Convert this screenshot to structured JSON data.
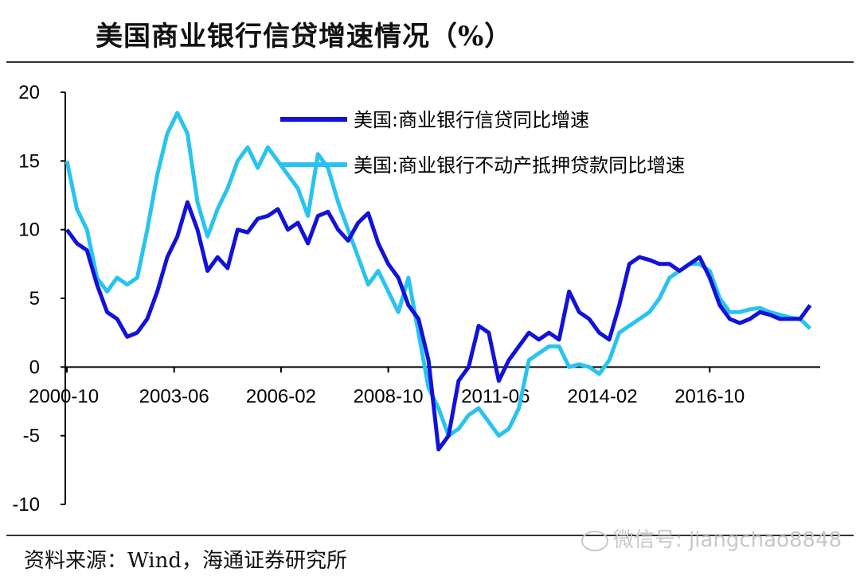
{
  "header": {
    "title": "美国商业银行信贷增速情况（%）"
  },
  "footer": {
    "source": "资料来源：Wind，海通证券研究所"
  },
  "watermark": {
    "text": "微信号: jiangchao8848"
  },
  "chart_data": {
    "type": "line",
    "title": "美国商业银行信贷增速情况（%）",
    "xlabel": "",
    "ylabel": "",
    "ylim": [
      -10,
      20
    ],
    "yticks": [
      -10,
      -5,
      0,
      5,
      10,
      15,
      20
    ],
    "xlim": [
      2000.75,
      2019.5
    ],
    "xtick_labels": [
      "2000-10",
      "2003-06",
      "2006-02",
      "2008-10",
      "2011-06",
      "2014-02",
      "2016-10"
    ],
    "xtick_values": [
      2000.75,
      2003.42,
      2006.08,
      2008.75,
      2011.42,
      2014.08,
      2016.75
    ],
    "grid": false,
    "legend": "top-right",
    "series": [
      {
        "name": "美国:商业银行信贷同比增速",
        "color": "#1212d9",
        "x": [
          2000.75,
          2001.0,
          2001.25,
          2001.5,
          2001.75,
          2002.0,
          2002.25,
          2002.5,
          2002.75,
          2003.0,
          2003.25,
          2003.5,
          2003.75,
          2004.0,
          2004.25,
          2004.5,
          2004.75,
          2005.0,
          2005.25,
          2005.5,
          2005.75,
          2006.0,
          2006.25,
          2006.5,
          2006.75,
          2007.0,
          2007.25,
          2007.5,
          2007.75,
          2008.0,
          2008.25,
          2008.5,
          2008.75,
          2009.0,
          2009.25,
          2009.5,
          2009.75,
          2010.0,
          2010.25,
          2010.5,
          2010.75,
          2011.0,
          2011.25,
          2011.5,
          2011.75,
          2012.0,
          2012.25,
          2012.5,
          2012.75,
          2013.0,
          2013.25,
          2013.5,
          2013.75,
          2014.0,
          2014.25,
          2014.5,
          2014.75,
          2015.0,
          2015.25,
          2015.5,
          2015.75,
          2016.0,
          2016.25,
          2016.5,
          2016.75,
          2017.0,
          2017.25,
          2017.5,
          2017.75,
          2018.0,
          2018.25,
          2018.5,
          2018.75,
          2019.0,
          2019.25
        ],
        "values": [
          10.0,
          9.0,
          8.5,
          6.0,
          4.0,
          3.5,
          2.2,
          2.5,
          3.5,
          5.5,
          8.0,
          9.5,
          12.0,
          10.0,
          7.0,
          8.0,
          7.2,
          10.0,
          9.8,
          10.8,
          11.0,
          11.5,
          10.0,
          10.5,
          9.0,
          11.0,
          11.3,
          10.0,
          9.2,
          10.5,
          11.2,
          9.0,
          7.5,
          6.5,
          4.5,
          3.5,
          0.5,
          -6.0,
          -5.0,
          -1.0,
          0.0,
          3.0,
          2.5,
          -1.0,
          0.5,
          1.5,
          2.5,
          2.0,
          2.5,
          2.0,
          5.5,
          4.0,
          3.5,
          2.5,
          2.0,
          4.5,
          7.5,
          8.0,
          7.8,
          7.5,
          7.5,
          7.0,
          7.5,
          8.0,
          6.5,
          4.5,
          3.5,
          3.2,
          3.5,
          4.0,
          3.8,
          3.5,
          3.5,
          3.5,
          4.5
        ]
      },
      {
        "name": "美国:商业银行不动产抵押贷款同比增速",
        "color": "#29c3ef",
        "x": [
          2000.75,
          2001.0,
          2001.25,
          2001.5,
          2001.75,
          2002.0,
          2002.25,
          2002.5,
          2002.75,
          2003.0,
          2003.25,
          2003.5,
          2003.75,
          2004.0,
          2004.25,
          2004.5,
          2004.75,
          2005.0,
          2005.25,
          2005.5,
          2005.75,
          2006.0,
          2006.25,
          2006.5,
          2006.75,
          2007.0,
          2007.25,
          2007.5,
          2007.75,
          2008.0,
          2008.25,
          2008.5,
          2008.75,
          2009.0,
          2009.25,
          2009.5,
          2009.75,
          2010.0,
          2010.25,
          2010.5,
          2010.75,
          2011.0,
          2011.25,
          2011.5,
          2011.75,
          2012.0,
          2012.25,
          2012.5,
          2012.75,
          2013.0,
          2013.25,
          2013.5,
          2013.75,
          2014.0,
          2014.25,
          2014.5,
          2014.75,
          2015.0,
          2015.25,
          2015.5,
          2015.75,
          2016.0,
          2016.25,
          2016.5,
          2016.75,
          2017.0,
          2017.25,
          2017.5,
          2017.75,
          2018.0,
          2018.25,
          2018.5,
          2018.75,
          2019.0,
          2019.25
        ],
        "values": [
          15.0,
          11.5,
          10.0,
          6.5,
          5.5,
          6.5,
          6.0,
          6.5,
          10.0,
          14.0,
          17.0,
          18.5,
          17.0,
          12.0,
          9.5,
          11.5,
          13.0,
          15.0,
          16.0,
          14.5,
          16.0,
          15.0,
          14.0,
          13.0,
          11.0,
          15.5,
          14.5,
          12.0,
          10.0,
          8.0,
          6.0,
          7.0,
          5.5,
          4.0,
          6.5,
          2.5,
          -1.5,
          -3.0,
          -5.0,
          -4.5,
          -3.5,
          -3.0,
          -4.0,
          -5.0,
          -4.5,
          -3.0,
          0.5,
          1.0,
          1.5,
          1.5,
          0.0,
          0.2,
          0.0,
          -0.5,
          0.5,
          2.5,
          3.0,
          3.5,
          4.0,
          5.0,
          6.5,
          7.0,
          7.5,
          7.5,
          7.0,
          5.0,
          4.0,
          4.0,
          4.2,
          4.3,
          4.0,
          3.8,
          3.6,
          3.5,
          2.8
        ]
      }
    ]
  }
}
